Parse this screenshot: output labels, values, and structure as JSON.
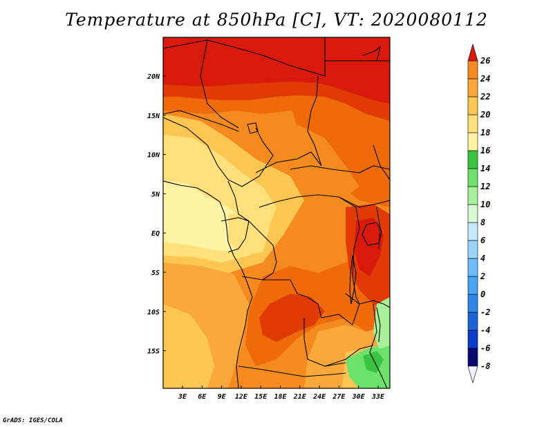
{
  "title": "Temperature at 850hPa [C], VT: 2020080112",
  "credit": "GrADS: IGES/COLA",
  "map": {
    "lat_labels": [
      "20N",
      "15N",
      "10N",
      "5N",
      "EQ",
      "5S",
      "10S",
      "15S"
    ],
    "lon_labels": [
      "3E",
      "6E",
      "9E",
      "12E",
      "15E",
      "18E",
      "21E",
      "24E",
      "27E",
      "30E",
      "33E"
    ]
  },
  "colorbar": {
    "labels": [
      "26",
      "24",
      "22",
      "20",
      "18",
      "16",
      "14",
      "12",
      "10",
      "8",
      "6",
      "4",
      "2",
      "0",
      "-2",
      "-4",
      "-6",
      "-8"
    ],
    "colors": [
      "#ffffff",
      "#f2f2ff",
      "#0a0a70",
      "#0d3dc8",
      "#1b64d6",
      "#2f86e8",
      "#4ba3f3",
      "#6cbcf7",
      "#9ad4fa",
      "#c5e8fb",
      "#d9f9d4",
      "#a8f09a",
      "#6ee06c",
      "#3bc43f",
      "#fff4a6",
      "#ffe07a",
      "#fcc652",
      "#faa83a",
      "#f58a1e",
      "#ef6a08",
      "#e03a05",
      "#d8190c"
    ]
  },
  "colors": {
    "level_26": "#d8190c",
    "level_24": "#e03a05",
    "level_22": "#ef6a08",
    "level_20": "#f58a1e",
    "level_18": "#faa83a",
    "level_16": "#fcc652",
    "level_14": "#ffe07a",
    "level_12": "#fff4a6",
    "level_10": "#3bc43f",
    "level_8": "#6ee06c",
    "level_6": "#a8f09a"
  }
}
